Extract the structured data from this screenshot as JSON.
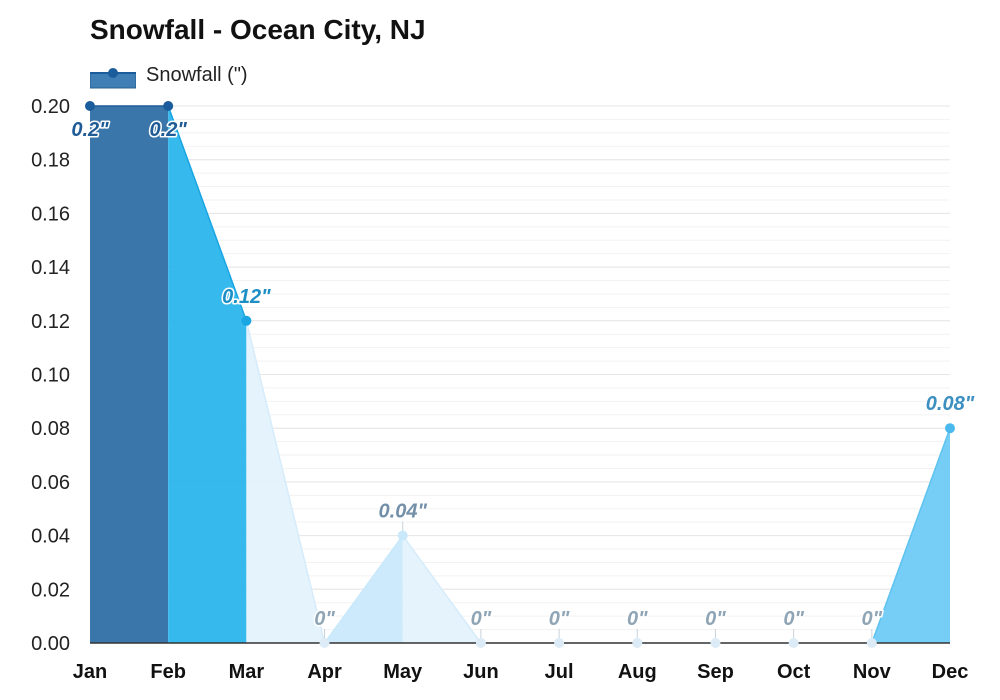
{
  "chart_data": {
    "type": "area",
    "title": "Snowfall - Ocean City, NJ",
    "categories": [
      "Jan",
      "Feb",
      "Mar",
      "Apr",
      "May",
      "Jun",
      "Jul",
      "Aug",
      "Sep",
      "Oct",
      "Nov",
      "Dec"
    ],
    "series": [
      {
        "name": "Snowfall (\")",
        "values": [
          0.2,
          0.2,
          0.12,
          0,
          0.04,
          0,
          0,
          0,
          0,
          0,
          0,
          0.08
        ],
        "data_labels": [
          "0.2\"",
          "0.2\"",
          "0.12\"",
          "0\"",
          "0.04\"",
          "0\"",
          "0\"",
          "0\"",
          "0\"",
          "0\"",
          "0\"",
          "0.08\""
        ]
      }
    ],
    "yticks": [
      "0.00",
      "0.02",
      "0.04",
      "0.06",
      "0.08",
      "0.10",
      "0.12",
      "0.14",
      "0.16",
      "0.18",
      "0.20"
    ],
    "ylim": [
      0,
      0.2
    ],
    "xlabel": "",
    "ylabel": "",
    "grid": true,
    "legend_position": "top-left",
    "colors": {
      "legend": "#3f7fb5",
      "legend_marker": "#1b5c9c",
      "jan": "#2f6fa5",
      "feb": "#2bb5ec",
      "mar": "#e3f2fc",
      "may_light": "#c9e9fb",
      "dec": "#6fcbf5",
      "label_dark": "#1f5b96",
      "label_mid": "#1d8fc4",
      "label_light": "#8fa5b5",
      "grid": "#e6e6e6",
      "axis": "#333333"
    }
  }
}
